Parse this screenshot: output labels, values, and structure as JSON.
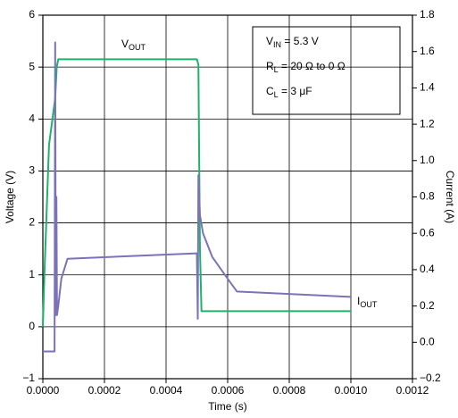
{
  "chart_data": {
    "type": "line",
    "x_label": "Time (s)",
    "y_label": "Voltage (V)",
    "y2_label": "Current (A)",
    "xlim": [
      0,
      0.0012
    ],
    "xticks": [
      {
        "value": 0,
        "label": "0.0000"
      },
      {
        "value": 0.0002,
        "label": "0.0002"
      },
      {
        "value": 0.0004,
        "label": "0.0004"
      },
      {
        "value": 0.0006,
        "label": "0.0006"
      },
      {
        "value": 0.0008,
        "label": "0.0008"
      },
      {
        "value": 0.001,
        "label": "0.0010"
      },
      {
        "value": 0.0012,
        "label": "0.0012"
      }
    ],
    "ylim": [
      -1,
      6
    ],
    "yticks": [
      {
        "value": -1,
        "label": "−1"
      },
      0,
      1,
      2,
      3,
      4,
      5,
      6
    ],
    "y2lim": [
      -0.2,
      1.8
    ],
    "y2ticks": [
      {
        "value": -0.2,
        "label": "−0.2"
      },
      {
        "value": 0,
        "label": "0.0"
      },
      0.2,
      0.4,
      0.6,
      0.8,
      {
        "value": 1,
        "label": "1.0"
      },
      1.2,
      1.4,
      1.6,
      1.8
    ],
    "grid": true,
    "series": [
      {
        "color": "#1db36b",
        "x": [
          0,
          5e-06,
          2e-05,
          4e-05,
          4.5e-05,
          5e-05,
          0.0005,
          0.000505,
          0.00051,
          0.000515,
          0.001
        ],
        "values": [
          0,
          1,
          3.5,
          4.4,
          5.0,
          5.15,
          5.15,
          5.05,
          1.5,
          0.3,
          0.3
        ]
      },
      {
        "color": "#7b72b8",
        "axis": "y2",
        "x": [
          0,
          3.8e-05,
          4e-05,
          4.2e-05,
          4.4e-05,
          4.6e-05,
          5e-05,
          6e-05,
          8e-05,
          0.0005,
          0.000503,
          0.000505,
          0.00051,
          0.00052,
          0.00055,
          0.0006,
          0.00063,
          0.001
        ],
        "values": [
          -0.05,
          -0.05,
          1.65,
          0.15,
          0.8,
          0.15,
          0.2,
          0.35,
          0.46,
          0.49,
          0.13,
          0.92,
          0.7,
          0.6,
          0.47,
          0.35,
          0.28,
          0.25
        ]
      }
    ],
    "annotations": [
      {
        "main": "V",
        "sub": "OUT"
      },
      {
        "main": "I",
        "sub": "OUT"
      }
    ],
    "conditions": [
      {
        "main": "V",
        "sub": "IN",
        "rest": "  = 5.3 V"
      },
      {
        "main": "R",
        "sub": "L",
        "rest": " = 20 Ω to 0 Ω"
      },
      {
        "main": "C",
        "sub": "L",
        "rest": " = 3 μF"
      }
    ]
  }
}
